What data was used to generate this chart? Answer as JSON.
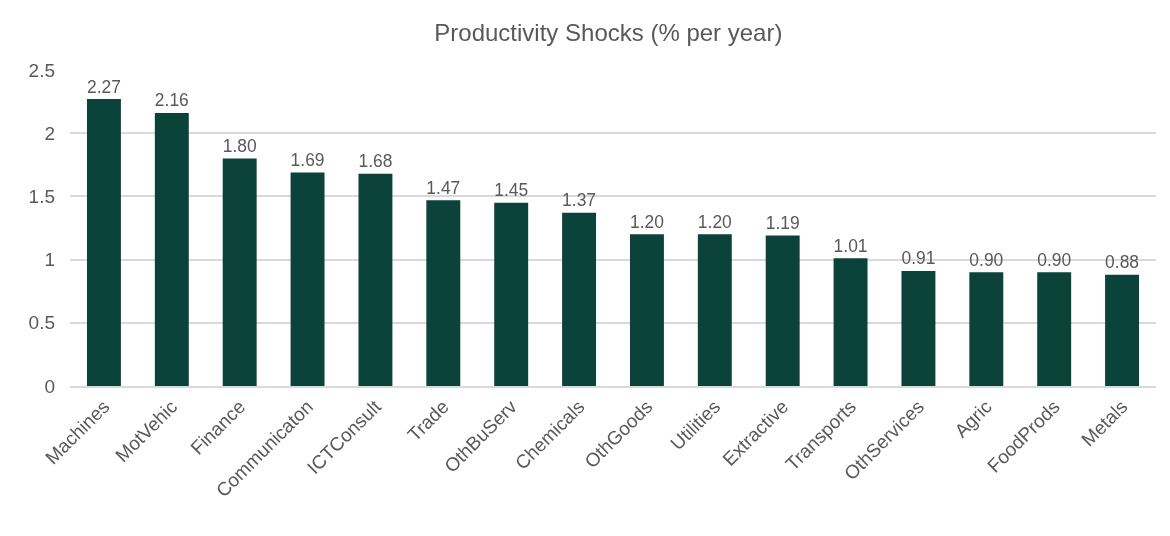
{
  "chart_data": {
    "type": "bar",
    "title": "Productivity Shocks (% per year)",
    "categories": [
      "Machines",
      "MotVehic",
      "Finance",
      "Communicaton",
      "ICTConsult",
      "Trade",
      "OthBuServ",
      "Chemicals",
      "OthGoods",
      "Utilities",
      "Extractive",
      "Transports",
      "OthServices",
      "Agric",
      "FoodProds",
      "Metals"
    ],
    "values": [
      2.27,
      2.16,
      1.8,
      1.69,
      1.68,
      1.47,
      1.45,
      1.37,
      1.2,
      1.2,
      1.19,
      1.01,
      0.91,
      0.9,
      0.9,
      0.88
    ],
    "value_labels": [
      "2.27",
      "2.16",
      "1.80",
      "1.69",
      "1.68",
      "1.47",
      "1.45",
      "1.37",
      "1.20",
      "1.20",
      "1.19",
      "1.01",
      "0.91",
      "0.90",
      "0.90",
      "0.88"
    ],
    "color": "#0b4239",
    "ylim": [
      0,
      2.5
    ],
    "yticks": [
      0,
      0.5,
      1,
      1.5,
      2,
      2.5
    ],
    "grid": "y",
    "legend": false
  }
}
